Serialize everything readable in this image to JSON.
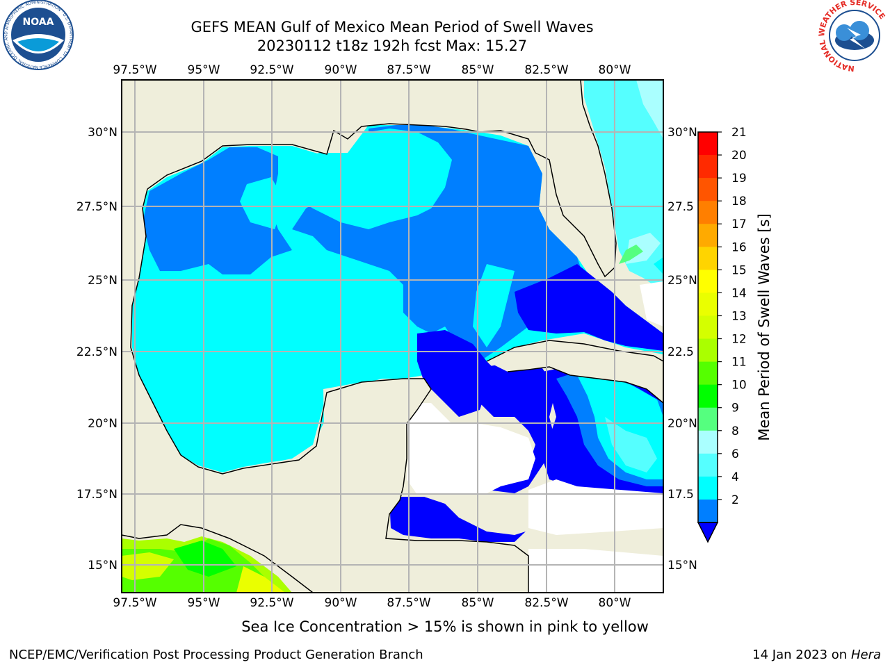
{
  "header": {
    "title_line1": "GEFS MEAN Gulf of Mexico Mean Period of Swell Waves",
    "title_line2": "20230112 t18z 192h fcst   Max: 15.27"
  },
  "logos": {
    "left": {
      "text": "NOAA",
      "ring_text": "NATIONAL OCEANIC AND ATMOSPHERIC ADMINISTRATION · U.S. DEPARTMENT OF COMMERCE"
    },
    "right": {
      "ring_text": "NATIONAL WEATHER SERVICE"
    }
  },
  "map": {
    "lon_labels": [
      "97.5°W",
      "95°W",
      "92.5°W",
      "90°W",
      "87.5°W",
      "85°W",
      "82.5°W",
      "80°W"
    ],
    "lat_labels_left": [
      "30°N",
      "27.5°N",
      "25°N",
      "22.5°N",
      "20°N",
      "17.5°N",
      "15°N"
    ],
    "lat_labels_right": [
      "30°N",
      "27.5",
      "25°N",
      "22.5",
      "20°N",
      "17.5",
      "15°N"
    ],
    "colors": {
      "land": "#efeedb",
      "ocean_none": "#ffffff",
      "grid": "#b4b4b4"
    }
  },
  "colorbar": {
    "label": "Mean Period of Swell Waves [s]",
    "ticks": [
      "21",
      "20",
      "19",
      "18",
      "17",
      "16",
      "15",
      "14",
      "13",
      "12",
      "11",
      "10",
      "9",
      "8",
      "6",
      "4",
      "2"
    ],
    "colors": [
      "#ff0000",
      "#ff2a00",
      "#ff5500",
      "#ff7f00",
      "#ffaa00",
      "#ffd400",
      "#ffff00",
      "#eaff00",
      "#d4ff00",
      "#aaff00",
      "#55ff00",
      "#00ff00",
      "#55ff7f",
      "#aaffff",
      "#55ffff",
      "#00ffff",
      "#007fff"
    ],
    "under_color": "#0000ff"
  },
  "caption": "Sea Ice Concentration > 15% is shown in pink to yellow",
  "footer": {
    "left": "NCEP/EMC/Verification Post Processing Product Generation Branch",
    "right_date": "14 Jan 2023 on",
    "right_host": "Hera"
  }
}
